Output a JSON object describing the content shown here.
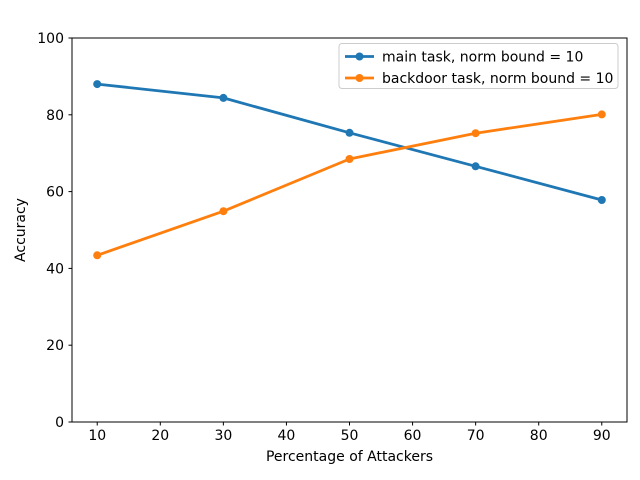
{
  "figure": {
    "background": "#ffffff"
  },
  "chart_data": {
    "type": "line",
    "title": "",
    "xlabel": "Percentage of Attackers",
    "ylabel": "Accuracy",
    "x": [
      10,
      30,
      50,
      70,
      90
    ],
    "series": [
      {
        "name": "main task, norm bound = 10",
        "color": "#1f77b4",
        "marker": "circle",
        "values": [
          88.0,
          84.4,
          75.3,
          66.6,
          57.8
        ]
      },
      {
        "name": "backdoor task, norm bound = 10",
        "color": "#ff7f0e",
        "marker": "circle",
        "values": [
          43.4,
          54.9,
          68.5,
          75.2,
          80.1
        ]
      }
    ],
    "xlim": [
      6,
      94
    ],
    "ylim": [
      0,
      100
    ],
    "xticks": [
      10,
      20,
      30,
      40,
      50,
      60,
      70,
      80,
      90
    ],
    "yticks": [
      0,
      20,
      40,
      60,
      80,
      100
    ],
    "grid": false,
    "legend": {
      "position": "upper right",
      "border_color": "#cccccc",
      "background": "#ffffff"
    },
    "axis_color": "#000000"
  }
}
